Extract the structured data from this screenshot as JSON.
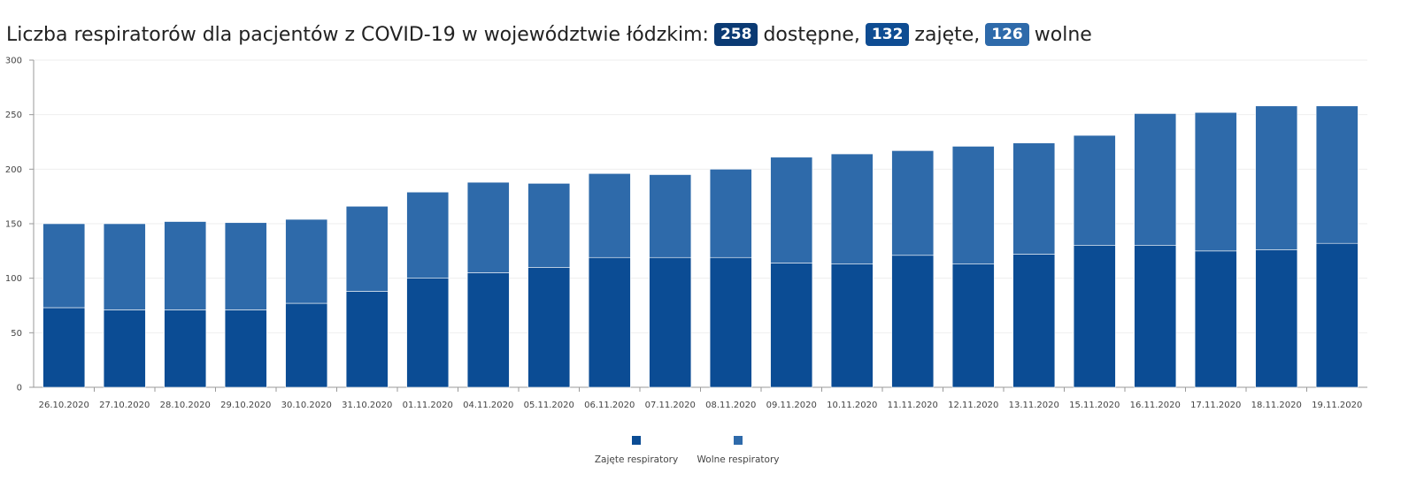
{
  "title": {
    "prefix": "Liczba respiratorów dla pacjentów z COVID-19 w województwie łódzkim:",
    "available_value": "258",
    "available_label": "dostępne,",
    "occupied_value": "132",
    "occupied_label": "zajęte,",
    "free_value": "126",
    "free_label": "wolne"
  },
  "colors": {
    "occupied": "#0b4c94",
    "free": "#2e6aaa",
    "axis": "#999999",
    "grid": "#eeeeee"
  },
  "chart_data": {
    "type": "bar",
    "stacked": true,
    "categories": [
      "26.10.2020",
      "27.10.2020",
      "28.10.2020",
      "29.10.2020",
      "30.10.2020",
      "31.10.2020",
      "01.11.2020",
      "04.11.2020",
      "05.11.2020",
      "06.11.2020",
      "07.11.2020",
      "08.11.2020",
      "09.11.2020",
      "10.11.2020",
      "11.11.2020",
      "12.11.2020",
      "13.11.2020",
      "15.11.2020",
      "16.11.2020",
      "17.11.2020",
      "18.11.2020",
      "19.11.2020"
    ],
    "series": [
      {
        "name": "Zajęte respiratory",
        "values": [
          73,
          71,
          71,
          71,
          77,
          88,
          100,
          105,
          110,
          119,
          119,
          119,
          114,
          113,
          121,
          113,
          122,
          130,
          130,
          125,
          126,
          132
        ]
      },
      {
        "name": "Wolne respiratory",
        "values": [
          77,
          79,
          81,
          80,
          77,
          78,
          79,
          83,
          77,
          77,
          76,
          81,
          97,
          101,
          96,
          108,
          102,
          101,
          121,
          127,
          132,
          126
        ]
      }
    ],
    "yticks": [
      0,
      50,
      100,
      150,
      200,
      250,
      300
    ],
    "ylim": [
      0,
      300
    ],
    "grid": true,
    "legend_position": "bottom-center"
  }
}
